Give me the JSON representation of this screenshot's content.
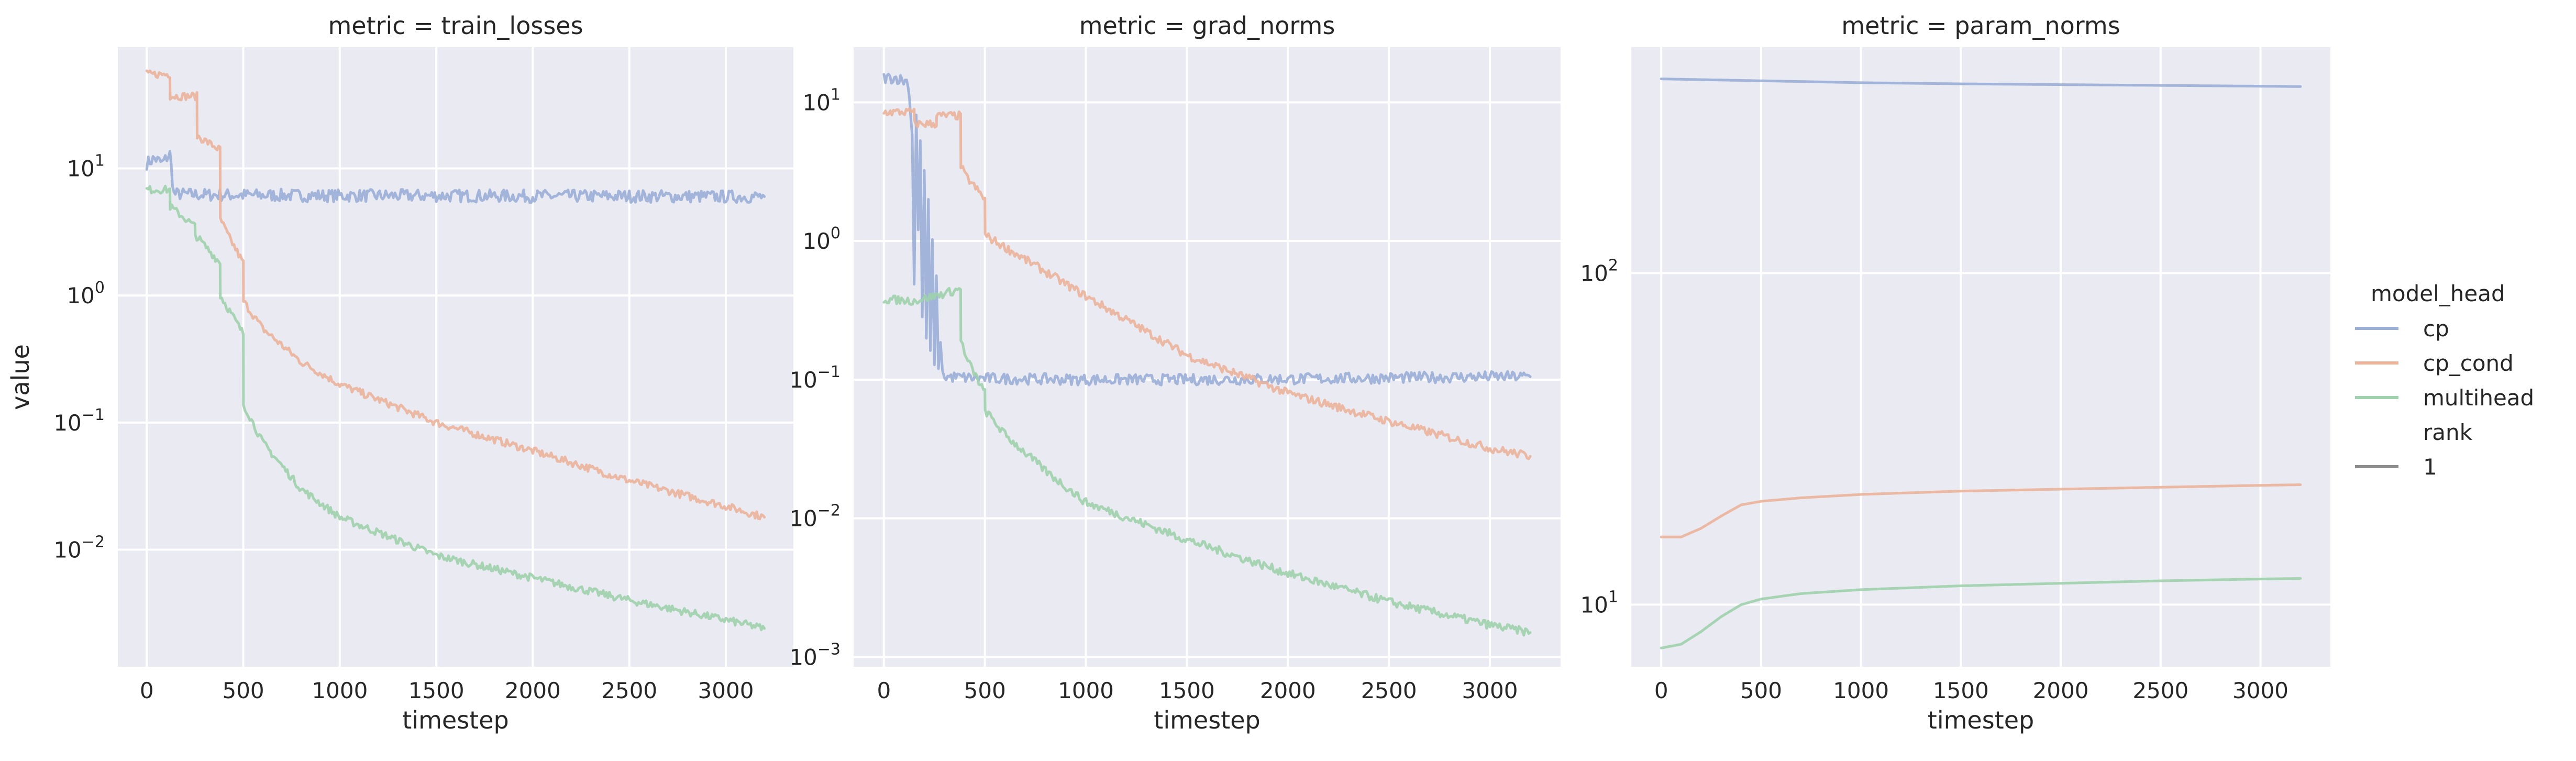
{
  "legend": {
    "hue_title": "model_head",
    "style_title": "rank",
    "entries": [
      {
        "label": "cp",
        "color": "#9aaed6"
      },
      {
        "label": "cp_cond",
        "color": "#ebb39a"
      },
      {
        "label": "multihead",
        "color": "#9fd1ac"
      }
    ],
    "style_entries": [
      {
        "label": "1",
        "color": "#8c8c8c"
      }
    ]
  },
  "chart_data": [
    {
      "type": "line",
      "title": "metric = train_losses",
      "xlabel": "timestep",
      "ylabel": "value",
      "yscale": "log",
      "xlim": [
        -150,
        3350
      ],
      "ylim": [
        0.0012,
        90
      ],
      "xticks": [
        0,
        500,
        1000,
        1500,
        2000,
        2500,
        3000
      ],
      "yticks": [
        {
          "value": 0.01,
          "base": "10",
          "exp": "−2"
        },
        {
          "value": 0.1,
          "base": "10",
          "exp": "−1"
        },
        {
          "value": 1,
          "base": "10",
          "exp": "0"
        },
        {
          "value": 10,
          "base": "10",
          "exp": "1"
        }
      ],
      "grid": true,
      "series": [
        {
          "name": "cp",
          "color": "#9aaed6",
          "noise": 0.05,
          "x": [
            0,
            40,
            80,
            120,
            140,
            300,
            600,
            1000,
            1500,
            2000,
            2500,
            3000,
            3200
          ],
          "y": [
            11,
            12,
            11,
            13,
            6.3,
            6.2,
            6.15,
            6.1,
            6.1,
            6.05,
            6.05,
            6.0,
            6.0
          ]
        },
        {
          "name": "cp_cond",
          "color": "#ebb39a",
          "noise": 0.03,
          "x": [
            0,
            120,
            121,
            260,
            261,
            380,
            381,
            420,
            500,
            501,
            600,
            800,
            1000,
            1500,
            2000,
            2500,
            3000,
            3200
          ],
          "y": [
            55,
            55,
            37,
            37,
            18,
            14,
            4.0,
            3.0,
            1.8,
            0.9,
            0.55,
            0.3,
            0.2,
            0.1,
            0.06,
            0.035,
            0.022,
            0.018
          ]
        },
        {
          "name": "multihead",
          "color": "#9fd1ac",
          "noise": 0.03,
          "x": [
            0,
            120,
            121,
            250,
            251,
            380,
            381,
            500,
            501,
            600,
            800,
            1000,
            1500,
            2000,
            2500,
            3000,
            3200
          ],
          "y": [
            6.8,
            6.8,
            5.0,
            3.5,
            3.0,
            1.8,
            1.0,
            0.5,
            0.14,
            0.07,
            0.03,
            0.018,
            0.009,
            0.006,
            0.004,
            0.0028,
            0.0024
          ]
        }
      ]
    },
    {
      "type": "line",
      "title": "metric = grad_norms",
      "xlabel": "timestep",
      "ylabel": "",
      "yscale": "log",
      "xlim": [
        -150,
        3350
      ],
      "ylim": [
        0.00085,
        25
      ],
      "xticks": [
        0,
        500,
        1000,
        1500,
        2000,
        2500,
        3000
      ],
      "yticks": [
        {
          "value": 0.001,
          "base": "10",
          "exp": "−3"
        },
        {
          "value": 0.01,
          "base": "10",
          "exp": "−2"
        },
        {
          "value": 0.1,
          "base": "10",
          "exp": "−1"
        },
        {
          "value": 1,
          "base": "10",
          "exp": "0"
        },
        {
          "value": 10,
          "base": "10",
          "exp": "1"
        }
      ],
      "grid": true,
      "series": [
        {
          "name": "cp",
          "color": "#9aaed6",
          "noise": 0.04,
          "x": [
            0,
            60,
            120,
            140,
            150,
            160,
            170,
            180,
            190,
            200,
            210,
            220,
            230,
            240,
            250,
            260,
            270,
            280,
            290,
            300,
            500,
            1000,
            1500,
            2000,
            2500,
            3000,
            3200
          ],
          "y": [
            15,
            15,
            14,
            6,
            0.5,
            8,
            1.2,
            5,
            0.3,
            3,
            0.2,
            2,
            0.15,
            1.0,
            0.12,
            0.6,
            0.11,
            0.2,
            0.11,
            0.105,
            0.102,
            0.1,
            0.1,
            0.101,
            0.103,
            0.105,
            0.105
          ]
        },
        {
          "name": "cp_cond",
          "color": "#ebb39a",
          "noise": 0.03,
          "x": [
            0,
            150,
            151,
            260,
            261,
            380,
            381,
            400,
            500,
            501,
            600,
            800,
            1000,
            1500,
            2000,
            2500,
            3000,
            3200
          ],
          "y": [
            8.5,
            8.5,
            7.0,
            7.0,
            8.0,
            8.0,
            3.5,
            3.0,
            2.0,
            1.1,
            0.9,
            0.6,
            0.4,
            0.15,
            0.08,
            0.05,
            0.032,
            0.028
          ]
        },
        {
          "name": "multihead",
          "color": "#9fd1ac",
          "noise": 0.03,
          "x": [
            0,
            150,
            250,
            380,
            381,
            400,
            500,
            501,
            600,
            800,
            1000,
            1500,
            2000,
            2500,
            3000,
            3200
          ],
          "y": [
            0.38,
            0.37,
            0.4,
            0.45,
            0.2,
            0.15,
            0.08,
            0.06,
            0.04,
            0.022,
            0.013,
            0.007,
            0.004,
            0.0025,
            0.0017,
            0.0015
          ]
        }
      ]
    },
    {
      "type": "line",
      "title": "metric = param_norms",
      "xlabel": "timestep",
      "ylabel": "",
      "yscale": "log",
      "xlim": [
        -150,
        3350
      ],
      "ylim": [
        6.5,
        480
      ],
      "xticks": [
        0,
        500,
        1000,
        1500,
        2000,
        2500,
        3000
      ],
      "yticks": [
        {
          "value": 10,
          "base": "10",
          "exp": "1"
        },
        {
          "value": 100,
          "base": "10",
          "exp": "2"
        }
      ],
      "grid": true,
      "series": [
        {
          "name": "cp",
          "color": "#9aaed6",
          "noise": 0,
          "x": [
            0,
            500,
            1000,
            1500,
            2000,
            2500,
            3000,
            3200
          ],
          "y": [
            385,
            380,
            375,
            372,
            370,
            368,
            366,
            365
          ]
        },
        {
          "name": "cp_cond",
          "color": "#ebb39a",
          "noise": 0,
          "x": [
            0,
            100,
            200,
            300,
            400,
            500,
            700,
            1000,
            1500,
            2000,
            2500,
            3000,
            3200
          ],
          "y": [
            16,
            16,
            17,
            18.5,
            20,
            20.5,
            21,
            21.5,
            22,
            22.3,
            22.6,
            22.9,
            23
          ]
        },
        {
          "name": "multihead",
          "color": "#9fd1ac",
          "noise": 0,
          "x": [
            0,
            100,
            200,
            300,
            400,
            500,
            700,
            1000,
            1500,
            2000,
            2500,
            3000,
            3200
          ],
          "y": [
            7.4,
            7.6,
            8.3,
            9.2,
            10,
            10.4,
            10.8,
            11.1,
            11.4,
            11.6,
            11.8,
            11.95,
            12
          ]
        }
      ]
    }
  ]
}
